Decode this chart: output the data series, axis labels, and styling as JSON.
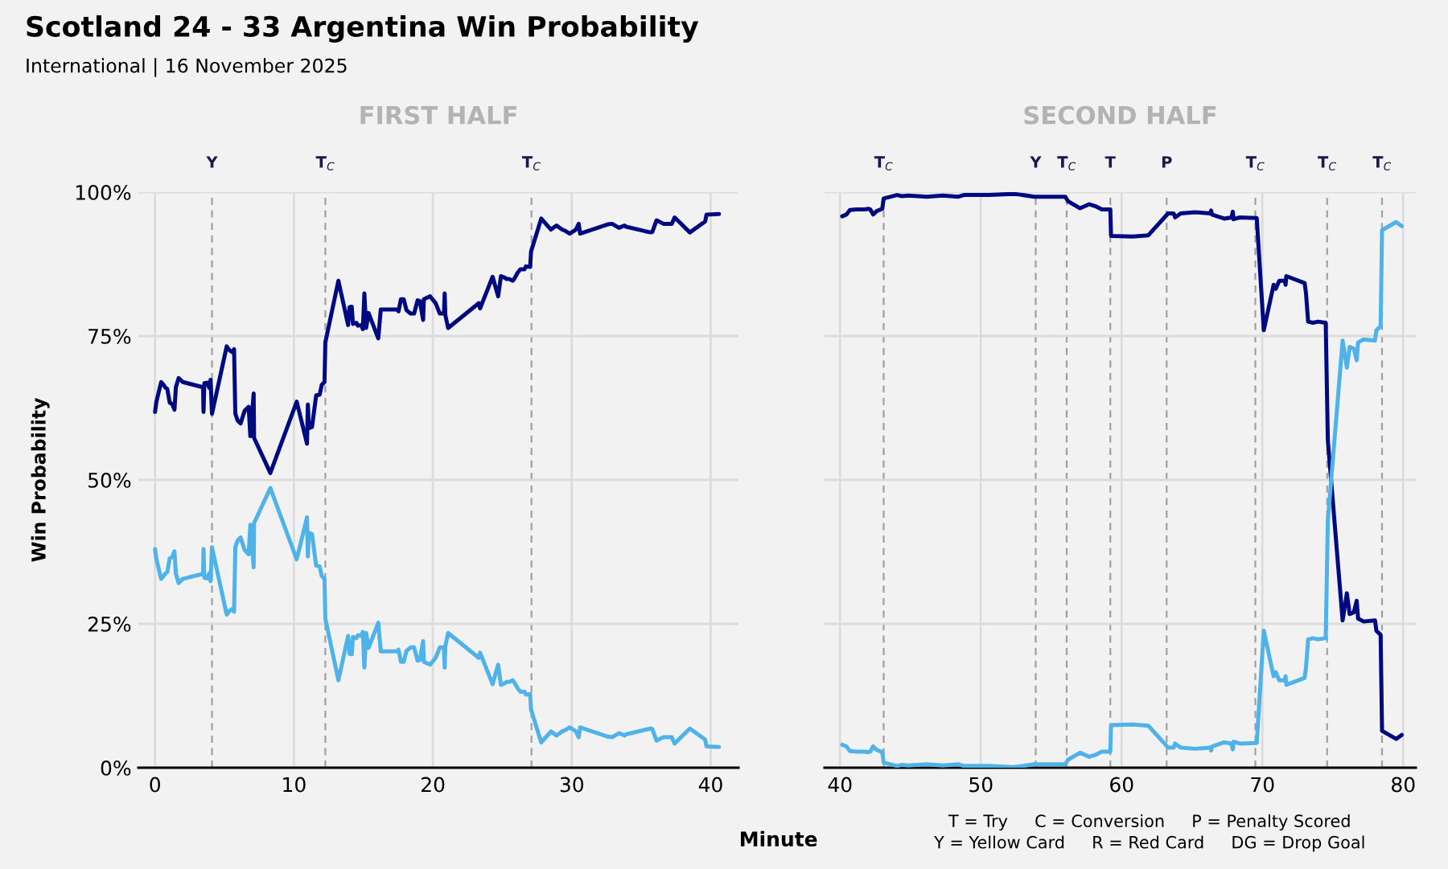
{
  "chart_data": [
    {
      "type": "line",
      "title": "FIRST HALF",
      "ylabel": "Win Probability",
      "annotations": [
        "Scotland 24 - 33 Argentina Win Probability",
        "International | 16 November 2025"
      ],
      "x": [
        0,
        0.1,
        0.44,
        0.62,
        0.76,
        0.88,
        1.06,
        1.23,
        1.4,
        1.5,
        1.7,
        2.0,
        3.46,
        3.49,
        3.55,
        3.76,
        3.9,
        4.0,
        4.1,
        5.16,
        5.37,
        5.57,
        5.69,
        5.78,
        5.95,
        6.16,
        6.45,
        6.74,
        6.86,
        6.98,
        7.1,
        7.13,
        8.3,
        10.2,
        10.94,
        11.0,
        11.08,
        11.3,
        11.6,
        11.85,
        12.0,
        12.2,
        12.26,
        13.2,
        13.9,
        14.0,
        14.16,
        14.25,
        14.49,
        14.6,
        14.84,
        14.96,
        15.07,
        15.2,
        15.37,
        16.07,
        16.25,
        17.4,
        17.53,
        17.7,
        17.9,
        18.1,
        18.4,
        18.65,
        18.9,
        19.06,
        19.3,
        19.35,
        19.8,
        20.2,
        20.5,
        20.8,
        20.85,
        20.9,
        21.1,
        23.3,
        23.4,
        24.3,
        24.7,
        24.9,
        25.2,
        25.3,
        25.5,
        25.75,
        25.9,
        26.1,
        26.3,
        26.6,
        26.7,
        27.0,
        27.07,
        27.8,
        28.5,
        28.9,
        29.3,
        29.5,
        29.85,
        30.3,
        30.5,
        30.6,
        32.6,
        32.9,
        33.4,
        33.8,
        33.9,
        35.3,
        35.7,
        35.8,
        36.1,
        36.6,
        37.2,
        37.4,
        37.7,
        38.5,
        39.6,
        39.7,
        40.6
      ],
      "series": [
        {
          "color": "#000a80",
          "values": [
            61.8,
            63.6,
            67.0,
            66.5,
            66.0,
            65.8,
            63.4,
            63.2,
            62.2,
            66.1,
            67.7,
            67.0,
            66.1,
            61.8,
            66.8,
            66.9,
            66.0,
            67.4,
            61.5,
            73.2,
            72.5,
            72.2,
            72.7,
            61.5,
            60.3,
            59.8,
            62.0,
            62.7,
            57.6,
            61.2,
            65.0,
            57.3,
            51.2,
            63.6,
            56.3,
            63.1,
            59.0,
            59.2,
            64.7,
            64.8,
            66.5,
            67.0,
            73.9,
            84.6,
            76.9,
            80.0,
            80.1,
            77.1,
            77.3,
            76.8,
            76.9,
            76.2,
            82.4,
            76.4,
            79.0,
            74.6,
            79.6,
            79.6,
            79.3,
            81.4,
            81.4,
            79.5,
            78.9,
            78.9,
            81.2,
            81.1,
            77.8,
            81.4,
            81.9,
            80.7,
            78.9,
            78.9,
            82.4,
            78.6,
            76.4,
            80.7,
            79.8,
            85.3,
            81.9,
            85.4,
            85.1,
            84.9,
            84.9,
            84.6,
            85.1,
            86.0,
            86.6,
            86.6,
            87.1,
            87.0,
            89.7,
            95.4,
            93.5,
            94.2,
            93.5,
            93.3,
            92.8,
            93.5,
            94.5,
            92.8,
            94.4,
            94.5,
            93.8,
            94.2,
            94.0,
            93.2,
            93.0,
            93.1,
            95.1,
            94.5,
            94.5,
            95.6,
            94.9,
            93.0,
            94.9,
            96.1,
            96.2
          ]
        },
        {
          "color": "#4fb3ea",
          "values": [
            38.0,
            36.2,
            32.8,
            33.3,
            33.8,
            34.0,
            36.4,
            36.6,
            37.6,
            33.7,
            32.1,
            32.8,
            33.7,
            38.0,
            33.0,
            32.9,
            33.8,
            32.4,
            38.3,
            26.6,
            27.3,
            27.6,
            27.1,
            38.3,
            39.5,
            40.0,
            37.8,
            37.1,
            42.2,
            38.6,
            34.8,
            42.5,
            48.6,
            36.2,
            43.5,
            36.7,
            40.8,
            40.6,
            35.1,
            35.0,
            33.3,
            32.8,
            25.9,
            15.2,
            22.9,
            19.8,
            19.7,
            22.7,
            22.5,
            23.0,
            22.9,
            23.6,
            17.4,
            23.4,
            20.8,
            25.2,
            20.2,
            20.2,
            20.5,
            18.4,
            18.4,
            20.3,
            20.9,
            20.9,
            18.6,
            18.7,
            22.0,
            18.4,
            17.9,
            19.1,
            20.9,
            20.9,
            17.4,
            21.2,
            23.4,
            19.1,
            20.0,
            14.5,
            17.9,
            14.4,
            14.7,
            14.9,
            14.9,
            15.2,
            14.7,
            13.8,
            13.2,
            13.2,
            12.7,
            12.8,
            10.1,
            4.4,
            6.3,
            5.6,
            6.3,
            6.5,
            7.0,
            6.3,
            5.3,
            7.0,
            5.4,
            5.3,
            6.0,
            5.6,
            5.8,
            6.6,
            6.8,
            6.7,
            4.7,
            5.3,
            5.3,
            4.2,
            4.9,
            6.8,
            4.9,
            3.7,
            3.6
          ]
        }
      ],
      "xlim": [
        -1.2,
        42
      ],
      "xticks": [
        0,
        10,
        20,
        30,
        40
      ],
      "ylim": [
        0,
        100
      ],
      "yticks": [
        {
          "value": 0,
          "label": "0%"
        },
        {
          "value": 25,
          "label": "25%"
        },
        {
          "value": 50,
          "label": "50%"
        },
        {
          "value": 75,
          "label": "75%"
        },
        {
          "value": 100,
          "label": "100%"
        }
      ],
      "grid": true,
      "ref_lines": [
        {
          "axis": "x",
          "value": 4.1,
          "label": "Y",
          "color": "#a0a0a0",
          "line_style": "dashed"
        },
        {
          "axis": "x",
          "value": 12.26,
          "label": "T$_{C}$",
          "color": "#a0a0a0",
          "line_style": "dashed"
        },
        {
          "axis": "x",
          "value": 27.1,
          "label": "T$_{C}$",
          "color": "#a0a0a0",
          "line_style": "dashed"
        }
      ]
    },
    {
      "type": "line",
      "title": "SECOND HALF",
      "xlabel": "Minute",
      "annotations": [
        "T = Try     C = Conversion     P = Penalty Scored",
        "Y = Yellow Card     R = Red Card     DG = Drop Goal"
      ],
      "x": [
        40.15,
        40.45,
        40.7,
        41.15,
        41.76,
        42.0,
        42.15,
        42.35,
        42.6,
        43.0,
        43.1,
        44.05,
        44.4,
        44.85,
        46.16,
        47.3,
        48.4,
        48.8,
        50.6,
        52.3,
        52.7,
        53.8,
        56.0,
        56.2,
        57.05,
        57.7,
        58.2,
        58.6,
        59.2,
        59.25,
        60.8,
        61.9,
        63.3,
        63.7,
        63.8,
        64.2,
        65.2,
        65.8,
        66.3,
        66.36,
        66.42,
        66.8,
        67.3,
        67.8,
        67.9,
        67.95,
        68.4,
        69.6,
        70.1,
        70.8,
        70.95,
        71.2,
        71.6,
        71.65,
        71.7,
        73.0,
        73.1,
        73.25,
        73.6,
        73.95,
        74.5,
        74.65,
        75.7,
        76.0,
        76.2,
        76.5,
        76.7,
        76.8,
        77.2,
        78.0,
        78.1,
        78.4,
        78.5,
        79.5,
        79.9
      ],
      "series": [
        {
          "color": "#000a80",
          "values": [
            95.8,
            96.1,
            96.9,
            97.0,
            97.0,
            97.1,
            97.0,
            96.1,
            96.7,
            97.1,
            98.9,
            99.5,
            99.3,
            99.4,
            99.2,
            99.4,
            99.2,
            99.5,
            99.5,
            99.7,
            99.6,
            99.2,
            99.2,
            98.4,
            97.2,
            97.9,
            97.5,
            97.0,
            97.0,
            92.4,
            92.3,
            92.5,
            96.3,
            96.3,
            95.6,
            96.3,
            96.5,
            96.4,
            96.3,
            96.8,
            96.1,
            95.8,
            95.4,
            95.6,
            96.6,
            95.3,
            95.6,
            95.5,
            76.0,
            83.9,
            83.2,
            84.6,
            84.6,
            83.9,
            85.4,
            84.2,
            82.4,
            77.5,
            77.3,
            77.5,
            77.3,
            56.9,
            25.6,
            30.3,
            26.7,
            27.0,
            29.0,
            25.9,
            25.4,
            25.6,
            23.8,
            23.1,
            6.4,
            5.0,
            5.7
          ]
        },
        {
          "color": "#4fb3ea",
          "values": [
            4.0,
            3.7,
            2.9,
            2.8,
            2.8,
            2.7,
            2.8,
            3.7,
            3.1,
            2.7,
            0.9,
            0.3,
            0.5,
            0.4,
            0.6,
            0.4,
            0.6,
            0.3,
            0.3,
            0.1,
            0.2,
            0.6,
            0.6,
            1.4,
            2.6,
            1.9,
            2.3,
            2.8,
            2.8,
            7.4,
            7.5,
            7.3,
            3.5,
            3.5,
            4.2,
            3.5,
            3.3,
            3.4,
            3.5,
            3.0,
            3.7,
            4.0,
            4.4,
            4.2,
            3.2,
            4.5,
            4.2,
            4.3,
            23.8,
            15.9,
            16.6,
            15.2,
            15.2,
            15.9,
            14.4,
            15.6,
            17.4,
            22.3,
            22.5,
            22.3,
            22.5,
            42.9,
            74.2,
            69.5,
            73.1,
            72.8,
            70.8,
            73.9,
            74.4,
            74.2,
            76.0,
            76.7,
            93.4,
            94.8,
            94.1
          ]
        }
      ],
      "xlim": [
        38.9,
        80.9
      ],
      "xticks": [
        40,
        50,
        60,
        70,
        80
      ],
      "ylim": [
        0,
        100
      ],
      "yticks": [
        {
          "value": 0,
          "label": null
        },
        {
          "value": 25,
          "label": null
        },
        {
          "value": 50,
          "label": null
        },
        {
          "value": 75,
          "label": null
        },
        {
          "value": 100,
          "label": null
        }
      ],
      "grid": true,
      "tick_labels": "x",
      "ref_lines": [
        {
          "axis": "x",
          "value": 43.1,
          "label": "T$_{C}$",
          "color": "#a0a0a0",
          "line_style": "dashed"
        },
        {
          "axis": "x",
          "value": 53.9,
          "label": "Y",
          "color": "#a0a0a0",
          "line_style": "dashed"
        },
        {
          "axis": "x",
          "value": 56.1,
          "label": "T$_{C}$",
          "color": "#a0a0a0",
          "line_style": "dashed"
        },
        {
          "axis": "x",
          "value": 59.2,
          "label": "T",
          "color": "#a0a0a0",
          "line_style": "dashed"
        },
        {
          "axis": "x",
          "value": 63.2,
          "label": "P",
          "color": "#a0a0a0",
          "line_style": "dashed"
        },
        {
          "axis": "x",
          "value": 69.5,
          "label": "T$_{C}$",
          "color": "#a0a0a0",
          "line_style": "dashed"
        },
        {
          "axis": "x",
          "value": 74.6,
          "label": "T$_{C}$",
          "color": "#a0a0a0",
          "line_style": "dashed"
        },
        {
          "axis": "x",
          "value": 78.5,
          "label": "T$_{C}$",
          "color": "#a0a0a0",
          "line_style": "dashed"
        }
      ]
    }
  ]
}
